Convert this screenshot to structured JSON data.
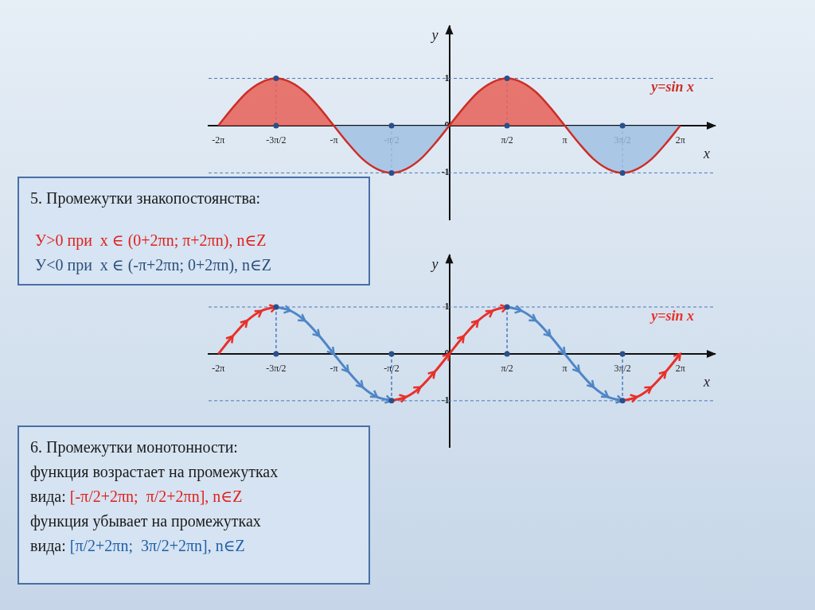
{
  "chart_data": [
    {
      "type": "line",
      "x": [
        -6.283,
        -5.89,
        -5.498,
        -5.105,
        -4.712,
        -4.32,
        -3.927,
        -3.534,
        -3.142,
        -2.749,
        -2.356,
        -1.963,
        -1.571,
        -1.178,
        -0.785,
        -0.393,
        0,
        0.393,
        0.785,
        1.178,
        1.571,
        1.963,
        2.356,
        2.749,
        3.142,
        3.534,
        3.927,
        4.32,
        4.712,
        5.105,
        5.498,
        5.89,
        6.283
      ],
      "series": [
        {
          "color": "#cc2f27",
          "values": [
            0,
            0.38,
            0.71,
            0.92,
            1,
            0.92,
            0.71,
            0.38,
            0,
            -0.38,
            -0.71,
            -0.92,
            -1,
            -0.92,
            -0.71,
            -0.38,
            0,
            0.38,
            0.71,
            0.92,
            1,
            0.92,
            0.71,
            0.38,
            0,
            -0.38,
            -0.71,
            -0.92,
            -1,
            -0.92,
            -0.71,
            -0.38,
            0
          ]
        }
      ],
      "xlim": [
        -6.55,
        7.22
      ],
      "ylim": [
        -2,
        2.1
      ],
      "xticks": [
        {
          "value": -6.283,
          "label": "-2π"
        },
        {
          "value": -4.712,
          "label": "-3π/2"
        },
        {
          "value": -3.142,
          "label": "-π"
        },
        {
          "value": -1.571,
          "label": "-π/2"
        },
        {
          "value": 1.571,
          "label": "π/2"
        },
        {
          "value": 3.142,
          "label": "π"
        },
        {
          "value": 4.712,
          "label": "3π/2"
        },
        {
          "value": 6.283,
          "label": "2π"
        }
      ],
      "yticks": [
        -1,
        0,
        1
      ],
      "xlabel": "x",
      "ylabel": "y",
      "annotation": "y=sin x",
      "grid": false
    },
    {
      "type": "line",
      "x": [
        -6.283,
        -5.89,
        -5.498,
        -5.105,
        -4.712,
        -4.32,
        -3.927,
        -3.534,
        -3.142,
        -2.749,
        -2.356,
        -1.963,
        -1.571,
        -1.178,
        -0.785,
        -0.393,
        0,
        0.393,
        0.785,
        1.178,
        1.571,
        1.963,
        2.356,
        2.749,
        3.142,
        3.534,
        3.927,
        4.32,
        4.712,
        5.105,
        5.498,
        5.89,
        6.283
      ],
      "series": [
        {
          "color": "#e8302a",
          "values": [
            0,
            0.38,
            0.71,
            0.92,
            1,
            null,
            null,
            null,
            null,
            null,
            null,
            null,
            -1,
            -0.92,
            -0.71,
            -0.38,
            0,
            0.38,
            0.71,
            0.92,
            1,
            null,
            null,
            null,
            null,
            null,
            null,
            null,
            -1,
            -0.92,
            -0.71,
            -0.38,
            0
          ]
        },
        {
          "color": "#4f86c6",
          "values": [
            null,
            null,
            null,
            null,
            1,
            0.92,
            0.71,
            0.38,
            0,
            -0.38,
            -0.71,
            -0.92,
            -1,
            null,
            null,
            null,
            null,
            null,
            null,
            null,
            1,
            0.92,
            0.71,
            0.38,
            0,
            -0.38,
            -0.71,
            -0.92,
            -1,
            null,
            null,
            null,
            null
          ]
        }
      ],
      "xlim": [
        -6.55,
        7.22
      ],
      "ylim": [
        -2,
        2.1
      ],
      "xticks": [
        {
          "value": -6.283,
          "label": "-2π"
        },
        {
          "value": -4.712,
          "label": "-3π/2"
        },
        {
          "value": -3.142,
          "label": "-π"
        },
        {
          "value": -1.571,
          "label": "-π/2"
        },
        {
          "value": 1.571,
          "label": "π/2"
        },
        {
          "value": 3.142,
          "label": "π"
        },
        {
          "value": 4.712,
          "label": "3π/2"
        },
        {
          "value": 6.283,
          "label": "2π"
        }
      ],
      "yticks": [
        -1,
        0,
        1
      ],
      "xlabel": "x",
      "ylabel": "y",
      "annotation": "y=sin x",
      "grid": false
    }
  ],
  "boxes": [
    {
      "lines": [
        [
          {
            "text": "5. Промежутки знакопостоянства:",
            "color": "#1a1a1a"
          }
        ],
        [
          {
            "text": "У>0 при  x ∈ (0+2πn; π+2πn), n∈Z",
            "color": "#e0201b"
          }
        ],
        [
          {
            "text": "У<0 при  x ∈ (-π+2πn; 0+2πn), n∈Z",
            "color": "#2b4f7a"
          }
        ]
      ]
    },
    {
      "lines": [
        [
          {
            "text": "6. Промежутки монотонности:",
            "color": "#1a1a1a"
          }
        ],
        [
          {
            "text": "функция возрастает на промежутках",
            "color": "#1a1a1a"
          }
        ],
        [
          {
            "text": "вида: ",
            "color": "#1a1a1a"
          },
          {
            "text": "[-π/2+2πn;  π/2+2πn], n∈Z",
            "color": "#e0201b"
          }
        ],
        [
          {
            "text": "функция убывает на промежутках",
            "color": "#1a1a1a"
          }
        ],
        [
          {
            "text": "вида: ",
            "color": "#1a1a1a"
          },
          {
            "text": "[π/2+2πn;  3π/2+2πn], n∈Z",
            "color": "#1f5fa8"
          }
        ]
      ]
    }
  ]
}
